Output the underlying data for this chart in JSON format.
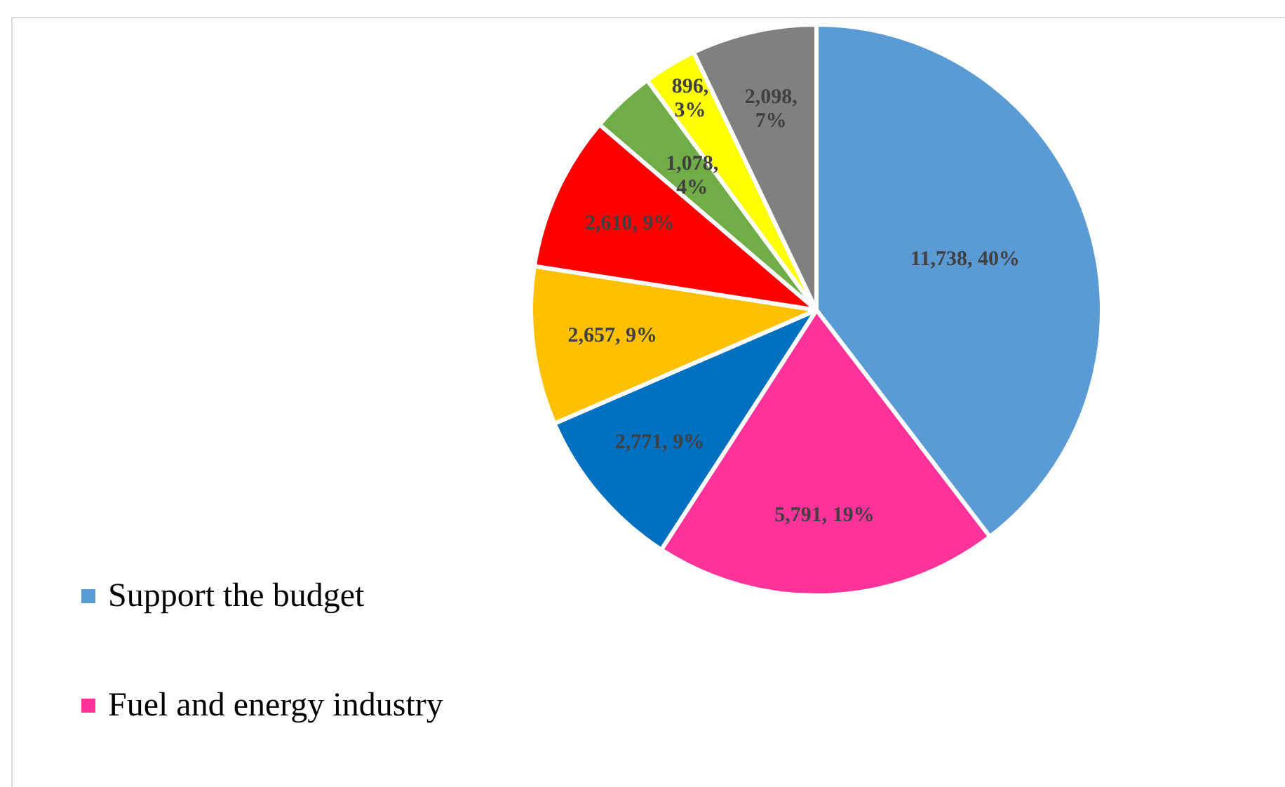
{
  "chart_data": {
    "type": "pie",
    "categories": [
      "Support the budget",
      "Fuel and energy industry",
      null,
      null,
      null,
      null,
      null,
      null
    ],
    "values": [
      11738,
      5791,
      2771,
      2657,
      2610,
      1078,
      896,
      2098
    ],
    "colors": [
      "#5b9bd5",
      "#ff3399",
      "#0070c0",
      "#ffc000",
      "#ff0000",
      "#70ad47",
      "#ffff00",
      "#808080"
    ],
    "value_labels": [
      "11,738, 40%",
      "5,791, 19%",
      "2,771, 9%",
      "2,657, 9%",
      "2,610, 9%",
      "1,078, 4%",
      "896, 3%",
      "2,098, 7%"
    ],
    "legend": "bottom left"
  }
}
